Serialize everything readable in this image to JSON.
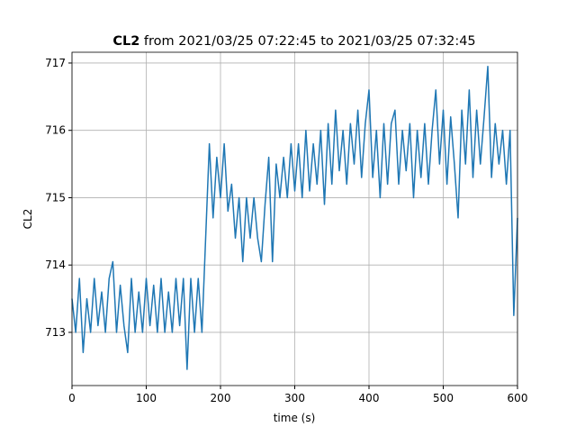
{
  "chart_data": {
    "type": "line",
    "title": {
      "bold": "CL2",
      "text": "from 2021/03/25 07:22:45 to 2021/03/25 07:32:45"
    },
    "xlabel": "time (s)",
    "ylabel": "CL2",
    "x": [
      0,
      5,
      10,
      15,
      20,
      25,
      30,
      35,
      40,
      45,
      50,
      55,
      60,
      65,
      70,
      75,
      80,
      85,
      90,
      95,
      100,
      105,
      110,
      115,
      120,
      125,
      130,
      135,
      140,
      145,
      150,
      155,
      160,
      165,
      170,
      175,
      180,
      185,
      190,
      195,
      200,
      205,
      210,
      215,
      220,
      225,
      230,
      235,
      240,
      245,
      250,
      255,
      260,
      265,
      270,
      275,
      280,
      285,
      290,
      295,
      300,
      305,
      310,
      315,
      320,
      325,
      330,
      335,
      340,
      345,
      350,
      355,
      360,
      365,
      370,
      375,
      380,
      385,
      390,
      395,
      400,
      405,
      410,
      415,
      420,
      425,
      430,
      435,
      440,
      445,
      450,
      455,
      460,
      465,
      470,
      475,
      480,
      485,
      490,
      495,
      500,
      505,
      510,
      515,
      520,
      525,
      530,
      535,
      540,
      545,
      550,
      555,
      560,
      565,
      570,
      575,
      580,
      585,
      590,
      595,
      600
    ],
    "series": [
      {
        "name": "CL2",
        "color": "#1f77b4",
        "values": [
          713.5,
          713.0,
          713.8,
          712.7,
          713.5,
          713.0,
          713.8,
          713.1,
          713.6,
          713.0,
          713.8,
          714.05,
          713.0,
          713.7,
          713.1,
          712.7,
          713.8,
          713.0,
          713.6,
          713.0,
          713.8,
          713.1,
          713.7,
          713.0,
          713.8,
          713.0,
          713.6,
          713.0,
          713.8,
          713.1,
          713.8,
          712.45,
          713.8,
          713.0,
          713.8,
          713.0,
          714.4,
          715.8,
          714.7,
          715.6,
          715.0,
          715.8,
          714.8,
          715.2,
          714.4,
          715.0,
          714.05,
          715.0,
          714.4,
          715.0,
          714.4,
          714.05,
          714.9,
          715.6,
          714.05,
          715.5,
          715.0,
          715.6,
          715.0,
          715.8,
          715.1,
          715.8,
          715.0,
          716.0,
          715.1,
          715.8,
          715.2,
          716.0,
          714.9,
          716.1,
          715.2,
          716.3,
          715.4,
          716.0,
          715.2,
          716.1,
          715.5,
          716.3,
          715.3,
          716.1,
          716.6,
          715.3,
          716.0,
          715.0,
          716.1,
          715.2,
          716.1,
          716.3,
          715.2,
          716.0,
          715.4,
          716.1,
          715.0,
          716.0,
          715.3,
          716.1,
          715.2,
          716.0,
          716.6,
          715.5,
          716.3,
          715.2,
          716.2,
          715.5,
          714.7,
          716.3,
          715.5,
          716.6,
          715.3,
          716.3,
          715.5,
          716.2,
          716.95,
          715.3,
          716.1,
          715.5,
          716.0,
          715.2,
          716.0,
          713.25,
          714.7
        ]
      }
    ],
    "xlim": [
      0,
      600
    ],
    "ylim": [
      712.21,
      717.16
    ],
    "xticks": [
      0,
      100,
      200,
      300,
      400,
      500,
      600
    ],
    "yticks": [
      713,
      714,
      715,
      716,
      717
    ],
    "grid": true
  }
}
